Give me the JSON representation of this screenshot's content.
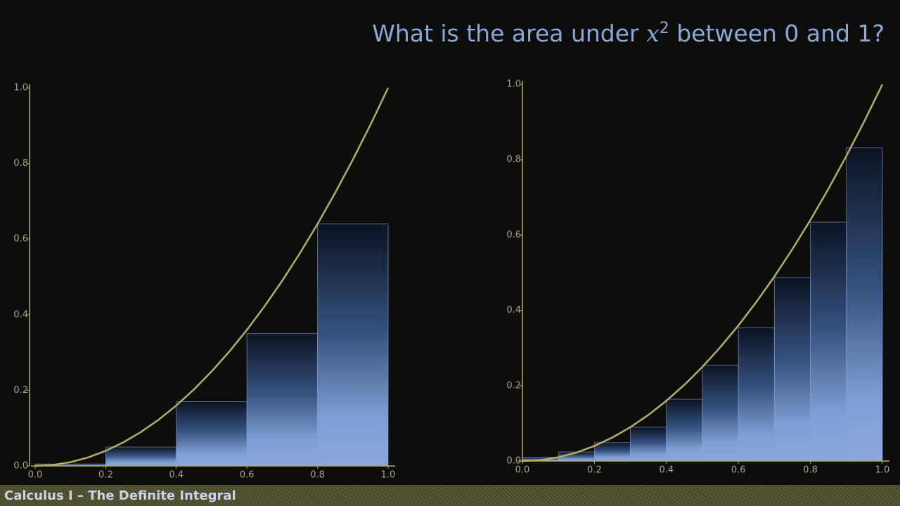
{
  "header": {
    "title_start": "What is the area under",
    "title_var": "x",
    "title_exp": "2",
    "title_end": "between 0 and 1?"
  },
  "footer": "Calculus I – The Definite Integral",
  "chart_data": [
    {
      "type": "histogram",
      "bins": [
        0,
        0.2,
        0.4,
        0.6,
        0.8,
        1
      ],
      "values": [
        0.005,
        0.05,
        0.17,
        0.35,
        0.64
      ],
      "color": "#8aa8dc",
      "curve": {
        "color": "#b5ad62",
        "x": [
          0,
          0.05,
          0.1,
          0.15,
          0.2,
          0.25,
          0.3,
          0.35,
          0.4,
          0.45,
          0.5,
          0.55,
          0.6,
          0.65,
          0.7,
          0.75,
          0.8,
          0.85,
          0.9,
          0.95,
          1
        ],
        "values": [
          0,
          0.0025,
          0.01,
          0.0225,
          0.04,
          0.0625,
          0.09,
          0.1225,
          0.16,
          0.2025,
          0.25,
          0.3025,
          0.36,
          0.4225,
          0.49,
          0.5625,
          0.64,
          0.7225,
          0.81,
          0.9025,
          1
        ]
      },
      "xlim": [
        0,
        1
      ],
      "ylim": [
        0,
        1
      ],
      "xticks": [
        {
          "value": 0,
          "label": "0.0"
        },
        0.2,
        0.4,
        0.6,
        0.8,
        {
          "value": 1,
          "label": "1.0"
        }
      ],
      "yticks": [
        {
          "value": 0,
          "label": "0.0"
        },
        0.2,
        0.4,
        0.6,
        0.8,
        {
          "value": 1,
          "label": "1.0"
        }
      ]
    },
    {
      "type": "histogram",
      "bins": [
        0,
        0.1,
        0.2,
        0.3,
        0.4,
        0.5,
        0.6,
        0.7,
        0.8,
        0.9,
        1
      ],
      "values": [
        0.01,
        0.024,
        0.049,
        0.09,
        0.164,
        0.254,
        0.354,
        0.487,
        0.634,
        0.832
      ],
      "color": "#8aa8dc",
      "curve": {
        "color": "#b5ad62",
        "x": [
          0,
          0.05,
          0.1,
          0.15,
          0.2,
          0.25,
          0.3,
          0.35,
          0.4,
          0.45,
          0.5,
          0.55,
          0.6,
          0.65,
          0.7,
          0.75,
          0.8,
          0.85,
          0.9,
          0.95,
          1
        ],
        "values": [
          0,
          0.0025,
          0.01,
          0.0225,
          0.04,
          0.0625,
          0.09,
          0.1225,
          0.16,
          0.2025,
          0.25,
          0.3025,
          0.36,
          0.4225,
          0.49,
          0.5625,
          0.64,
          0.7225,
          0.81,
          0.9025,
          1
        ]
      },
      "xlim": [
        0,
        1
      ],
      "ylim": [
        0,
        1
      ],
      "xticks": [
        {
          "value": 0,
          "label": "0.0"
        },
        0.2,
        0.4,
        0.6,
        0.8,
        {
          "value": 1,
          "label": "1.0"
        }
      ],
      "yticks": [
        {
          "value": 0,
          "label": "0.0"
        },
        0.2,
        0.4,
        0.6,
        0.8,
        {
          "value": 1,
          "label": "1.0"
        }
      ]
    }
  ]
}
